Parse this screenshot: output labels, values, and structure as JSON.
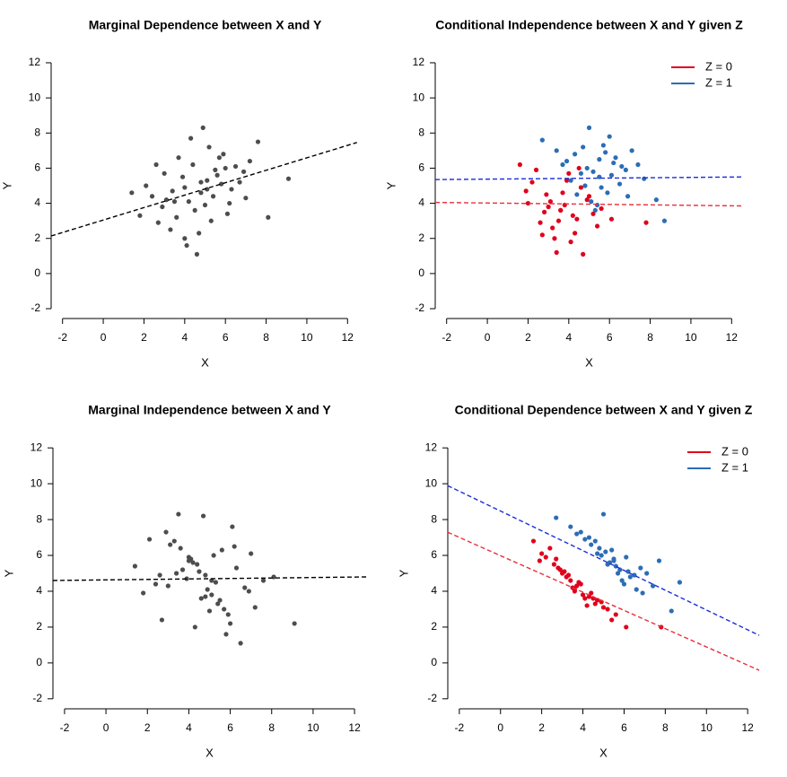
{
  "chart_data": [
    {
      "type": "scatter",
      "title": "Marginal Dependence between X and Y",
      "xlabel": "X",
      "ylabel": "Y",
      "xlim": [
        -2.56,
        12.56
      ],
      "ylim": [
        -2.56,
        12.56
      ],
      "xticks": [
        -2,
        0,
        2,
        4,
        6,
        8,
        10,
        12
      ],
      "yticks": [
        -2,
        0,
        2,
        4,
        6,
        8,
        10,
        12
      ],
      "series": [
        {
          "color": "#4d4d4d",
          "x": [
            4.2,
            5.1,
            3.6,
            6.0,
            4.8,
            2.9,
            5.5,
            4.0,
            6.7,
            3.3,
            5.9,
            4.5,
            2.4,
            7.2,
            5.2,
            3.9,
            4.7,
            6.3,
            1.8,
            5.8,
            4.4,
            3.1,
            6.9,
            5.0,
            4.1,
            2.1,
            7.6,
            5.4,
            3.7,
            6.1,
            4.9,
            2.7,
            5.6,
            8.1,
            3.4,
            4.6,
            6.5,
            1.4,
            5.3,
            4.3,
            7.0,
            3.0,
            5.7,
            4.0,
            9.1,
            2.6,
            6.2,
            4.8,
            3.5,
            5.1
          ],
          "values": [
            4.1,
            5.3,
            3.2,
            6.0,
            4.6,
            3.8,
            5.9,
            4.9,
            5.2,
            2.5,
            6.8,
            3.6,
            4.4,
            6.4,
            7.2,
            5.5,
            2.3,
            4.8,
            3.3,
            5.1,
            6.2,
            4.2,
            5.8,
            3.9,
            1.6,
            5.0,
            7.5,
            4.4,
            6.6,
            3.4,
            8.3,
            2.9,
            5.6,
            3.2,
            4.7,
            1.1,
            6.1,
            4.6,
            3.0,
            7.7,
            4.3,
            5.7,
            6.6,
            2.0,
            5.4,
            6.2,
            4.0,
            5.2,
            4.1,
            4.8
          ]
        }
      ],
      "lines": [
        {
          "color": "#000000",
          "linestyle": "dashed",
          "x": [
            -2.56,
            12.46
          ],
          "values": [
            2.14,
            7.46
          ]
        }
      ]
    },
    {
      "type": "scatter",
      "title": "Conditional Independence between X and Y given Z",
      "xlabel": "X",
      "ylabel": "Y",
      "xlim": [
        -2.56,
        12.56
      ],
      "ylim": [
        -2.56,
        12.56
      ],
      "xticks": [
        -2,
        0,
        2,
        4,
        6,
        8,
        10,
        12
      ],
      "yticks": [
        -2,
        0,
        2,
        4,
        6,
        8,
        10,
        12
      ],
      "legend": "top-right",
      "series": [
        {
          "name": "Z = 0",
          "color": "#e0001b",
          "x": [
            3.8,
            2.9,
            4.4,
            3.2,
            4.9,
            2.2,
            3.6,
            4.1,
            1.6,
            5.2,
            3.0,
            4.6,
            2.6,
            3.9,
            5.6,
            3.4,
            2.0,
            4.3,
            3.7,
            6.1,
            2.8,
            4.0,
            3.3,
            5.0,
            1.9,
            4.7,
            3.5,
            2.4,
            4.2,
            5.4,
            3.1,
            7.8,
            4.5,
            3.6,
            2.7
          ],
          "values": [
            3.9,
            4.5,
            3.1,
            2.6,
            4.2,
            5.2,
            3.6,
            1.8,
            6.2,
            3.4,
            3.8,
            4.9,
            2.9,
            5.3,
            3.7,
            1.2,
            4.0,
            2.3,
            4.6,
            3.1,
            3.5,
            5.7,
            2.0,
            4.4,
            4.7,
            1.1,
            3.0,
            5.9,
            3.3,
            2.7,
            4.1,
            2.9,
            6.0,
            3.6,
            2.2
          ]
        },
        {
          "name": "Z = 1",
          "color": "#2c6db5",
          "x": [
            5.5,
            6.2,
            4.8,
            5.9,
            6.8,
            4.3,
            5.1,
            7.4,
            5.7,
            4.6,
            6.5,
            3.9,
            5.3,
            6.0,
            7.7,
            4.9,
            5.6,
            3.4,
            6.3,
            5.0,
            8.7,
            4.4,
            5.8,
            6.9,
            2.7,
            5.2,
            6.6,
            4.1,
            7.1,
            5.4,
            3.7,
            6.1,
            8.3,
            4.7,
            5.5
          ],
          "values": [
            5.5,
            6.3,
            5.0,
            4.6,
            5.9,
            6.8,
            4.1,
            6.2,
            7.3,
            5.7,
            5.1,
            6.4,
            3.6,
            7.8,
            5.4,
            6.0,
            4.9,
            7.0,
            6.6,
            8.3,
            3.0,
            4.5,
            6.9,
            4.4,
            7.6,
            5.8,
            6.1,
            5.3,
            7.0,
            3.9,
            6.2,
            5.6,
            4.2,
            7.2,
            6.5
          ]
        }
      ],
      "lines": [
        {
          "color": "#e8303a",
          "linestyle": "dashed",
          "x": [
            -2.56,
            12.56
          ],
          "values": [
            4.05,
            3.85
          ]
        },
        {
          "color": "#1a2fd6",
          "linestyle": "dashed",
          "x": [
            -2.56,
            12.56
          ],
          "values": [
            5.35,
            5.5
          ]
        }
      ]
    },
    {
      "type": "scatter",
      "title": "Marginal Independence between X and Y",
      "xlabel": "X",
      "ylabel": "Y",
      "xlim": [
        -2.56,
        12.56
      ],
      "ylim": [
        -2.56,
        12.56
      ],
      "xticks": [
        -2,
        0,
        2,
        4,
        6,
        8,
        10,
        12
      ],
      "yticks": [
        -2,
        0,
        2,
        4,
        6,
        8,
        10,
        12
      ],
      "series": [
        {
          "color": "#4d4d4d",
          "x": [
            4.2,
            5.1,
            3.6,
            6.0,
            4.8,
            2.9,
            5.5,
            4.0,
            6.7,
            3.3,
            5.9,
            4.5,
            2.4,
            7.2,
            5.2,
            3.9,
            4.7,
            6.3,
            1.8,
            5.8,
            4.4,
            3.1,
            6.9,
            5.0,
            4.1,
            2.1,
            7.6,
            5.4,
            3.7,
            6.1,
            4.9,
            2.7,
            5.6,
            8.1,
            3.4,
            4.6,
            6.5,
            1.4,
            5.3,
            4.3,
            7.0,
            3.0,
            5.7,
            4.0,
            9.1,
            2.6,
            6.2,
            4.8,
            3.5,
            5.1
          ],
          "values": [
            5.6,
            3.8,
            6.4,
            2.2,
            4.9,
            7.3,
            3.5,
            5.9,
            4.2,
            6.8,
            2.7,
            5.1,
            4.4,
            3.1,
            6.0,
            4.7,
            8.2,
            5.3,
            3.9,
            1.6,
            5.5,
            6.6,
            4.0,
            2.9,
            5.8,
            6.9,
            4.6,
            3.3,
            5.2,
            7.6,
            4.1,
            2.4,
            6.3,
            4.8,
            5.0,
            3.6,
            1.1,
            5.4,
            4.5,
            2.0,
            6.1,
            4.3,
            3.0,
            5.7,
            2.2,
            4.9,
            6.5,
            3.7,
            8.3,
            4.6
          ]
        }
      ],
      "lines": [
        {
          "color": "#000000",
          "linestyle": "dashed",
          "x": [
            -2.56,
            12.56
          ],
          "values": [
            4.6,
            4.8
          ]
        }
      ]
    },
    {
      "type": "scatter",
      "title": "Conditional Dependence between X and Y given Z",
      "xlabel": "X",
      "ylabel": "Y",
      "xlim": [
        -2.56,
        12.56
      ],
      "ylim": [
        -2.56,
        12.56
      ],
      "xticks": [
        -2,
        0,
        2,
        4,
        6,
        8,
        10,
        12
      ],
      "yticks": [
        -2,
        0,
        2,
        4,
        6,
        8,
        10,
        12
      ],
      "legend": "top-right",
      "series": [
        {
          "name": "Z = 0",
          "color": "#e0001b",
          "x": [
            3.8,
            2.9,
            4.4,
            3.2,
            4.9,
            2.2,
            3.6,
            4.1,
            1.6,
            5.2,
            3.0,
            4.6,
            2.6,
            3.9,
            5.6,
            3.4,
            2.0,
            4.3,
            3.7,
            6.1,
            2.8,
            4.0,
            3.3,
            5.0,
            1.9,
            4.7,
            3.5,
            2.4,
            4.2,
            5.4,
            3.1,
            7.8,
            4.5,
            3.6,
            2.7
          ],
          "values": [
            4.5,
            5.2,
            3.9,
            4.8,
            3.4,
            5.9,
            4.1,
            3.6,
            6.8,
            3.0,
            5.0,
            3.3,
            5.5,
            4.4,
            2.7,
            4.6,
            6.1,
            3.7,
            4.3,
            2.0,
            5.3,
            3.8,
            4.9,
            3.1,
            5.7,
            3.5,
            4.2,
            6.4,
            3.2,
            2.4,
            5.1,
            2.0,
            3.6,
            4.0,
            5.8
          ]
        },
        {
          "name": "Z = 1",
          "color": "#2c6db5",
          "x": [
            5.5,
            6.2,
            4.8,
            5.9,
            6.8,
            4.3,
            5.1,
            7.4,
            5.7,
            4.6,
            6.5,
            3.9,
            5.3,
            6.0,
            7.7,
            4.9,
            5.6,
            3.4,
            6.3,
            5.0,
            8.7,
            4.4,
            5.8,
            6.9,
            2.7,
            5.2,
            6.6,
            4.1,
            7.1,
            5.4,
            3.7,
            6.1,
            8.3,
            4.7,
            5.5
          ],
          "values": [
            5.8,
            5.1,
            6.4,
            4.6,
            5.3,
            7.0,
            6.2,
            4.3,
            5.0,
            6.8,
            4.9,
            7.3,
            5.6,
            4.4,
            5.7,
            6.0,
            5.4,
            7.6,
            4.8,
            8.3,
            4.5,
            6.6,
            5.2,
            3.9,
            8.1,
            5.5,
            4.1,
            6.9,
            5.0,
            6.3,
            7.2,
            5.9,
            2.9,
            6.1,
            5.7
          ]
        }
      ],
      "lines": [
        {
          "color": "#e8303a",
          "linestyle": "dashed",
          "x": [
            -2.56,
            12.56
          ],
          "values": [
            7.29,
            -0.41
          ]
        },
        {
          "color": "#1a2fd6",
          "linestyle": "dashed",
          "x": [
            -2.56,
            12.56
          ],
          "values": [
            9.89,
            1.54
          ]
        }
      ]
    }
  ]
}
